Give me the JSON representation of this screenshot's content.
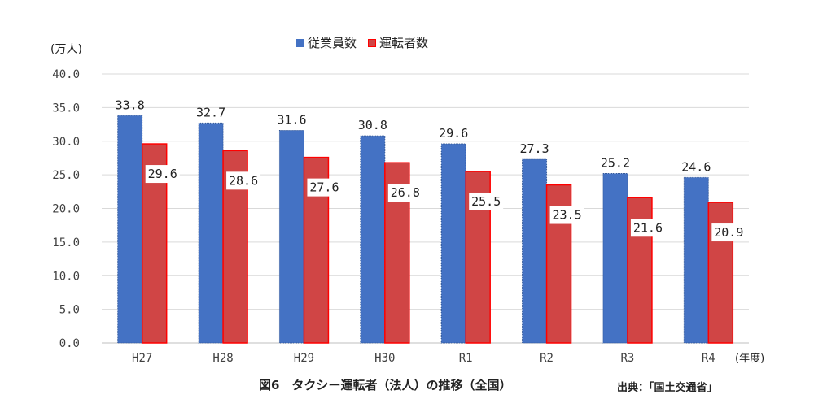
{
  "unit_label": "(万人)",
  "year_label": "(年度)",
  "caption": "図6　タクシー運転者（法人）の推移（全国）",
  "source": "出典：「国土交通省」",
  "colors": {
    "employees": "#4472C4",
    "drivers": "#D04545",
    "drivers_border": "#FF0000",
    "grid": "#D9D9D9"
  },
  "chart_data": {
    "type": "bar",
    "categories": [
      "H27",
      "H28",
      "H29",
      "H30",
      "R1",
      "R2",
      "R3",
      "R4"
    ],
    "series": [
      {
        "name": "従業員数",
        "values": [
          33.8,
          32.7,
          31.6,
          30.8,
          29.6,
          27.3,
          25.2,
          24.6
        ]
      },
      {
        "name": "運転者数",
        "values": [
          29.6,
          28.6,
          27.6,
          26.8,
          25.5,
          23.5,
          21.6,
          20.9
        ]
      }
    ],
    "ylim": [
      0,
      40
    ],
    "yticks": [
      "0.0",
      "5.0",
      "10.0",
      "15.0",
      "20.0",
      "25.0",
      "30.0",
      "35.0",
      "40.0"
    ],
    "value_labels": {
      "employees": [
        "33.8",
        "32.7",
        "31.6",
        "30.8",
        "29.6",
        "27.3",
        "25.2",
        "24.6"
      ],
      "drivers": [
        "29.6",
        "28.6",
        "27.6",
        "26.8",
        "25.5",
        "23.5",
        "21.6",
        "20.9"
      ]
    },
    "legend_position": "top",
    "grid": true
  }
}
